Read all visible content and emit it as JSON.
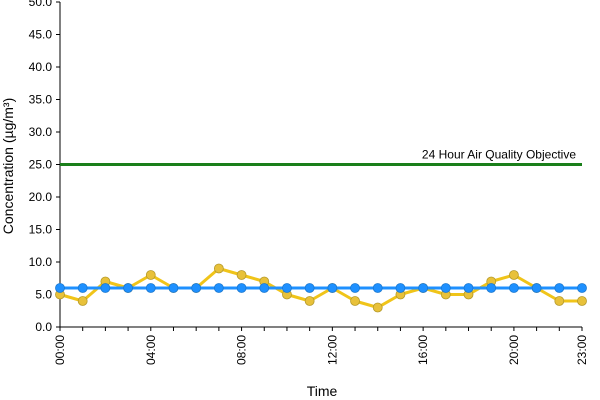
{
  "chart_data": {
    "type": "line",
    "title": "",
    "xlabel": "Time",
    "ylabel": "Concentration (µg/m³)",
    "ylim": [
      0,
      50
    ],
    "yticks": [
      "0.0",
      "5.0",
      "10.0",
      "15.0",
      "20.0",
      "25.0",
      "30.0",
      "35.0",
      "40.0",
      "45.0",
      "50.0"
    ],
    "x": [
      "00:00",
      "01:00",
      "02:00",
      "03:00",
      "04:00",
      "05:00",
      "06:00",
      "07:00",
      "08:00",
      "09:00",
      "10:00",
      "11:00",
      "12:00",
      "13:00",
      "14:00",
      "15:00",
      "16:00",
      "17:00",
      "18:00",
      "19:00",
      "20:00",
      "21:00",
      "22:00",
      "23:00"
    ],
    "xtick_labels": [
      "00:00",
      "04:00",
      "08:00",
      "12:00",
      "16:00",
      "20:00",
      "23:00"
    ],
    "grid": false,
    "legend": "none",
    "series": [
      {
        "color": "#f0c419",
        "marker_color": "#e8c13a",
        "values": [
          5,
          4,
          7,
          6,
          8,
          6,
          6,
          9,
          8,
          7,
          5,
          4,
          6,
          4,
          3,
          5,
          6,
          5,
          5,
          7,
          8,
          6,
          4,
          4
        ]
      },
      {
        "color": "#1e90ff",
        "marker_color": "#1e90ff",
        "values": [
          6,
          6,
          6,
          6,
          6,
          6,
          6,
          6,
          6,
          6,
          6,
          6,
          6,
          6,
          6,
          6,
          6,
          6,
          6,
          6,
          6,
          6,
          6,
          6
        ]
      }
    ],
    "reference_line": {
      "label": "24 Hour Air Quality Objective",
      "value": 25,
      "color": "#1a7f1a"
    }
  }
}
